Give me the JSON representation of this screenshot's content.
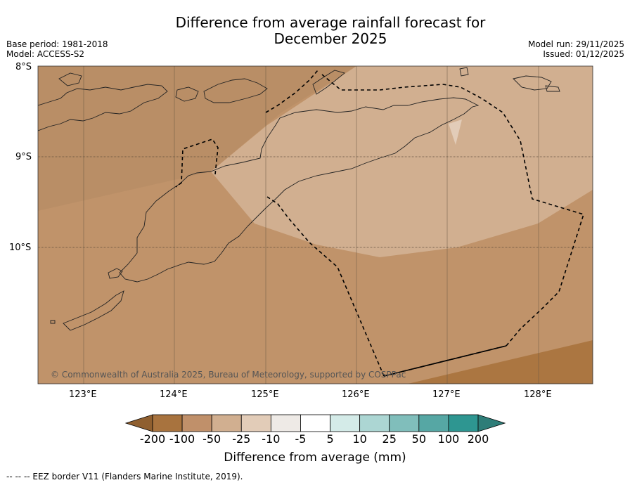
{
  "title_line1": "Difference from average rainfall forecast for",
  "title_line2": "December 2025",
  "base_period": "Base period: 1981-2018",
  "model": "Model: ACCESS-S2",
  "model_run": "Model run: 29/11/2025",
  "issued": "Issued: 01/12/2025",
  "copyright": "© Commonwealth of Australia 2025, Bureau of Meteorology, supported by COSPPac",
  "lat_labels": [
    "8°S",
    "9°S",
    "10°S"
  ],
  "lon_labels": [
    "123°E",
    "124°E",
    "125°E",
    "126°E",
    "127°E",
    "128°E"
  ],
  "colorbar": {
    "title": "Difference from average (mm)",
    "labels": [
      "-200",
      "-100",
      "-50",
      "-25",
      "-10",
      "-5",
      "5",
      "10",
      "25",
      "50",
      "100",
      "200"
    ],
    "colors": [
      "#a8733e",
      "#c0906a",
      "#d1af90",
      "#e2ccb8",
      "#eeeae6",
      "#ffffff",
      "#d4ebe8",
      "#acd6d3",
      "#80bebb",
      "#56a7a4",
      "#2e9691",
      "#2b8783"
    ],
    "extend_low_color": "#8f5f2f",
    "extend_high_color": "#2e7d78"
  },
  "legend_note": "--  --  -- EEZ border V11 (Flanders Marine Institute, 2019).",
  "field_colors": {
    "base": "#c0936a",
    "strong_dry": "#ab7641",
    "moderate": "#d1af90",
    "light": "#e2ccb8",
    "nw_dry": "#b98e66"
  }
}
